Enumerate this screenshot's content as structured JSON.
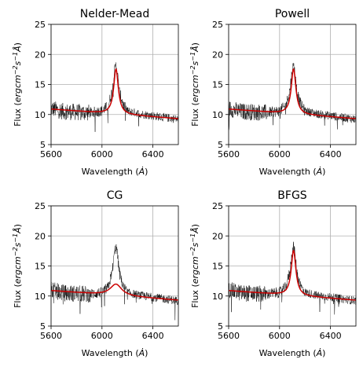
{
  "chart_data": [
    {
      "type": "line",
      "title": "Nelder-Mead",
      "xlabel": "Wavelength ($\\dot{A}$)",
      "ylabel": "Flux ($erg cm^{-2} s^{-1} \\dot{A}$)",
      "xlim": [
        5600,
        6600
      ],
      "ylim": [
        5,
        25
      ],
      "xticks": [
        "5600",
        "6000",
        "6400"
      ],
      "yticks": [
        "5",
        "10",
        "15",
        "20",
        "25"
      ],
      "grid": true,
      "fit": {
        "color": "#cc0000",
        "continuum_start": 10.9,
        "continuum_end": 9.3,
        "peak_center": 6110,
        "peak_height": 7.5,
        "peak_width": 22
      },
      "x": [
        5600,
        5700,
        5800,
        5900,
        6000,
        6050,
        6080,
        6100,
        6110,
        6120,
        6140,
        6170,
        6200,
        6300,
        6400,
        6500,
        6600
      ],
      "y": [
        11.0,
        10.5,
        10.4,
        10.3,
        10.6,
        11.5,
        14.0,
        17.5,
        18.3,
        17.0,
        13.5,
        11.5,
        10.6,
        10.1,
        9.8,
        9.5,
        9.2
      ]
    },
    {
      "type": "line",
      "title": "Powell",
      "xlabel": "Wavelength ($\\dot{A}$)",
      "ylabel": "Flux ($erg cm^{-2} s^{-1} \\dot{A}$)",
      "xlim": [
        5600,
        6600
      ],
      "ylim": [
        5,
        25
      ],
      "xticks": [
        "5600",
        "6000",
        "6400"
      ],
      "yticks": [
        "5",
        "10",
        "15",
        "20",
        "25"
      ],
      "grid": true,
      "fit": {
        "color": "#cc0000",
        "continuum_start": 10.9,
        "continuum_end": 9.3,
        "peak_center": 6110,
        "peak_height": 7.5,
        "peak_width": 22
      },
      "x": [
        5600,
        5700,
        5800,
        5900,
        6000,
        6050,
        6080,
        6100,
        6110,
        6120,
        6140,
        6170,
        6200,
        6300,
        6400,
        6500,
        6600
      ],
      "y": [
        11.0,
        10.5,
        10.4,
        10.3,
        10.6,
        11.5,
        14.0,
        17.5,
        18.3,
        17.0,
        13.5,
        11.5,
        10.6,
        10.1,
        9.8,
        9.5,
        9.2
      ]
    },
    {
      "type": "line",
      "title": "CG",
      "xlabel": "Wavelength ($\\dot{A}$)",
      "ylabel": "Flux ($erg cm^{-2} s^{-1} \\dot{A}$)",
      "xlim": [
        5600,
        6600
      ],
      "ylim": [
        5,
        25
      ],
      "xticks": [
        "5600",
        "6000",
        "6400"
      ],
      "yticks": [
        "5",
        "10",
        "15",
        "20",
        "25"
      ],
      "grid": true,
      "fit": {
        "color": "#cc0000",
        "continuum_start": 10.9,
        "continuum_end": 9.3,
        "peak_center": 6110,
        "peak_height": 1.9,
        "peak_width": 55
      },
      "x": [
        5600,
        5700,
        5800,
        5900,
        6000,
        6050,
        6080,
        6100,
        6110,
        6120,
        6140,
        6170,
        6200,
        6300,
        6400,
        6500,
        6600
      ],
      "y": [
        11.0,
        10.5,
        10.4,
        10.3,
        10.6,
        11.5,
        14.0,
        17.5,
        18.3,
        17.0,
        13.5,
        11.5,
        10.6,
        10.1,
        9.8,
        9.5,
        9.2
      ]
    },
    {
      "type": "line",
      "title": "BFGS",
      "xlabel": "Wavelength ($\\dot{A}$)",
      "ylabel": "Flux ($erg cm^{-2} s^{-1} \\dot{A}$)",
      "xlim": [
        5600,
        6600
      ],
      "ylim": [
        5,
        25
      ],
      "xticks": [
        "5600",
        "6000",
        "6400"
      ],
      "yticks": [
        "5",
        "10",
        "15",
        "20",
        "25"
      ],
      "grid": true,
      "fit": {
        "color": "#cc0000",
        "continuum_start": 10.9,
        "continuum_end": 9.3,
        "peak_center": 6110,
        "peak_height": 7.5,
        "peak_width": 22
      },
      "x": [
        5600,
        5700,
        5800,
        5900,
        6000,
        6050,
        6080,
        6100,
        6110,
        6120,
        6140,
        6170,
        6200,
        6300,
        6400,
        6500,
        6600
      ],
      "y": [
        11.0,
        10.5,
        10.4,
        10.3,
        10.6,
        11.5,
        14.0,
        17.5,
        18.3,
        17.0,
        13.5,
        11.5,
        10.6,
        10.1,
        9.8,
        9.5,
        9.2
      ]
    }
  ]
}
